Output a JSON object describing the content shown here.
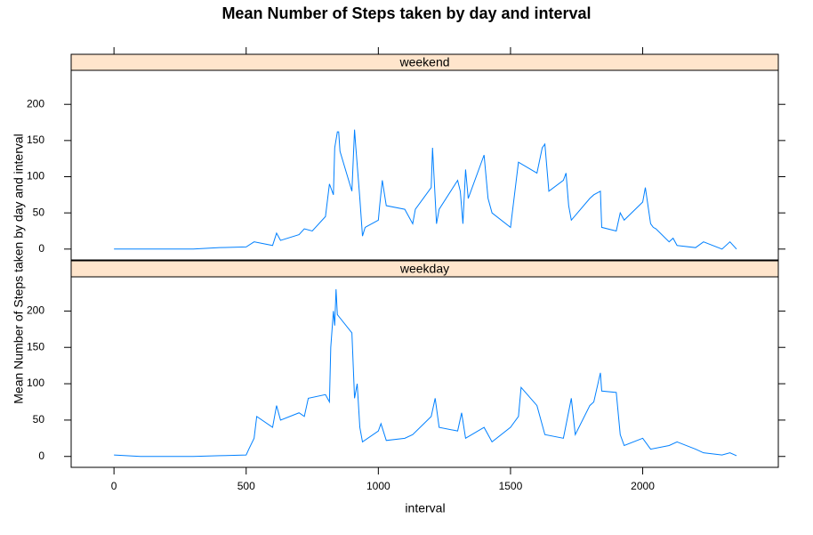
{
  "title": "Mean Number of Steps taken by day and interval",
  "xlabel": "interval",
  "ylabel": "Mean Number of Steps taken by day and interval",
  "chart_data": [
    {
      "type": "line",
      "title": "weekend",
      "color": "#0080ff",
      "x": [
        0,
        100,
        200,
        300,
        400,
        500,
        530,
        600,
        615,
        630,
        700,
        720,
        750,
        800,
        815,
        830,
        835,
        845,
        850,
        855,
        900,
        910,
        915,
        930,
        940,
        950,
        1000,
        1005,
        1015,
        1030,
        1100,
        1130,
        1140,
        1200,
        1205,
        1220,
        1230,
        1300,
        1310,
        1320,
        1330,
        1340,
        1400,
        1415,
        1430,
        1500,
        1530,
        1600,
        1620,
        1630,
        1645,
        1700,
        1710,
        1720,
        1730,
        1800,
        1815,
        1840,
        1845,
        1900,
        1915,
        1930,
        2000,
        2010,
        2030,
        2040,
        2050,
        2100,
        2115,
        2130,
        2200,
        2230,
        2300,
        2330,
        2355
      ],
      "values": [
        0,
        0,
        0,
        0,
        2,
        3,
        10,
        5,
        22,
        12,
        20,
        28,
        25,
        45,
        90,
        75,
        140,
        162,
        162,
        135,
        80,
        165,
        140,
        70,
        18,
        30,
        40,
        60,
        95,
        60,
        55,
        35,
        55,
        85,
        140,
        35,
        55,
        95,
        80,
        35,
        110,
        70,
        130,
        70,
        50,
        30,
        120,
        105,
        140,
        145,
        80,
        95,
        105,
        60,
        40,
        70,
        75,
        80,
        30,
        25,
        50,
        40,
        65,
        85,
        35,
        30,
        28,
        10,
        15,
        5,
        2,
        10,
        0,
        10,
        0
      ],
      "xlim": [
        -162,
        2513
      ],
      "ylim": [
        -15,
        247
      ],
      "xticks": [
        0,
        500,
        1000,
        1500,
        2000
      ],
      "yticks": [
        0,
        50,
        100,
        150,
        200
      ]
    },
    {
      "type": "line",
      "title": "weekday",
      "color": "#0080ff",
      "x": [
        0,
        100,
        200,
        300,
        400,
        500,
        510,
        530,
        540,
        600,
        615,
        630,
        700,
        720,
        735,
        800,
        815,
        820,
        830,
        835,
        840,
        845,
        900,
        910,
        920,
        930,
        940,
        1000,
        1010,
        1030,
        1100,
        1130,
        1200,
        1215,
        1230,
        1300,
        1315,
        1330,
        1400,
        1430,
        1500,
        1530,
        1540,
        1600,
        1630,
        1700,
        1730,
        1745,
        1800,
        1815,
        1840,
        1845,
        1900,
        1915,
        1930,
        2000,
        2030,
        2100,
        2130,
        2200,
        2230,
        2300,
        2330,
        2355
      ],
      "values": [
        2,
        0,
        0,
        0,
        1,
        2,
        10,
        25,
        55,
        40,
        70,
        50,
        60,
        55,
        80,
        85,
        75,
        150,
        200,
        180,
        230,
        195,
        170,
        80,
        100,
        40,
        20,
        35,
        45,
        22,
        25,
        30,
        55,
        80,
        40,
        35,
        60,
        25,
        40,
        20,
        40,
        55,
        95,
        70,
        30,
        25,
        80,
        30,
        70,
        75,
        115,
        90,
        88,
        30,
        15,
        25,
        10,
        15,
        20,
        10,
        5,
        2,
        5,
        1
      ],
      "xlim": [
        -162,
        2513
      ],
      "ylim": [
        -15,
        247
      ],
      "xticks": [
        0,
        500,
        1000,
        1500,
        2000
      ],
      "yticks": [
        0,
        50,
        100,
        150,
        200
      ]
    }
  ]
}
